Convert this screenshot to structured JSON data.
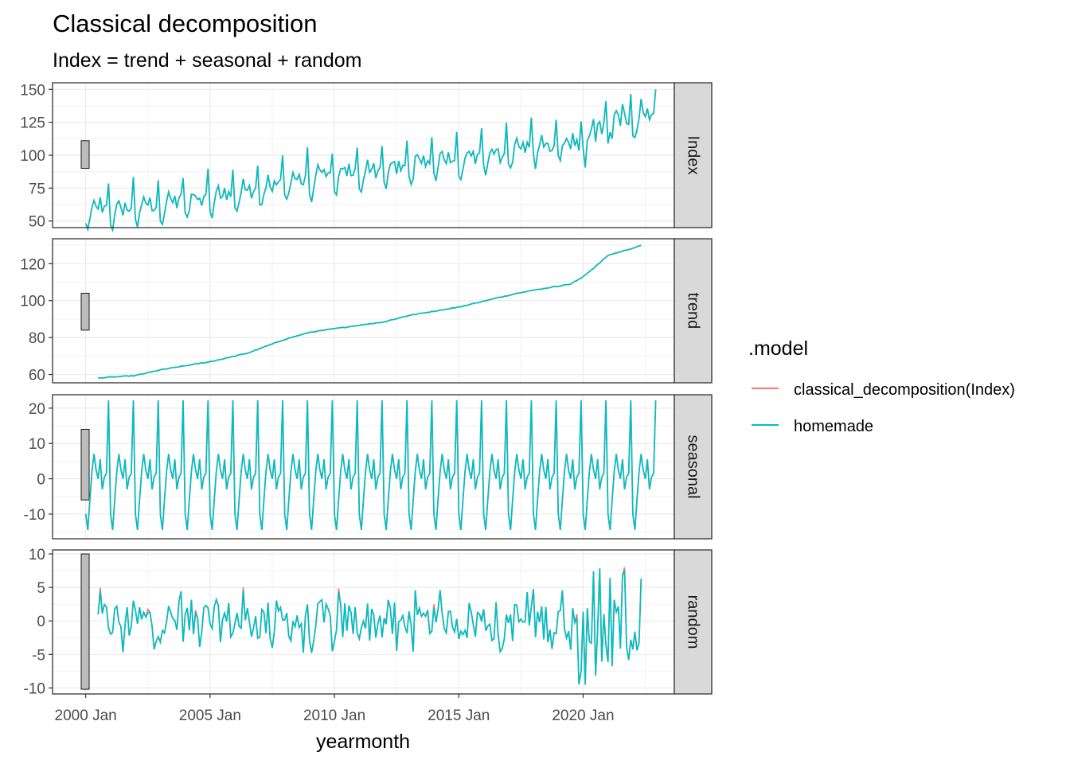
{
  "chart_data": {
    "type": "line",
    "title": "Classical decomposition",
    "subtitle": "Index = trend + seasonal + random",
    "xlabel": "yearmonth",
    "x_ticks": [
      "2000 Jan",
      "2005 Jan",
      "2010 Jan",
      "2015 Jan",
      "2020 Jan"
    ],
    "x_range": [
      "1998-09",
      "2023-09"
    ],
    "legend": {
      "title": ".model",
      "position": "right",
      "entries": [
        {
          "label": "classical_decomposition(Index)",
          "color": "#F8766D"
        },
        {
          "label": "homemade",
          "color": "#00BFC4"
        }
      ]
    },
    "panels": [
      {
        "strip": "Index",
        "ylim": [
          45,
          155
        ],
        "yticks": [
          "50",
          "75",
          "100",
          "125",
          "150"
        ],
        "scale_bar": [
          90,
          111
        ]
      },
      {
        "strip": "trend",
        "ylim": [
          55.5,
          133.5
        ],
        "yticks": [
          "60",
          "80",
          "100",
          "120"
        ],
        "scale_bar": [
          84,
          104
        ]
      },
      {
        "strip": "seasonal",
        "ylim": [
          -17,
          23.8
        ],
        "yticks": [
          "-10",
          "0",
          "10",
          "20"
        ],
        "scale_bar": [
          -6,
          14
        ]
      },
      {
        "strip": "random",
        "ylim": [
          -10.9,
          10.6
        ],
        "yticks": [
          "-10",
          "-5",
          "0",
          "5",
          "10"
        ],
        "scale_bar": [
          -10.2,
          10
        ]
      }
    ],
    "series_description": "Monthly series from 2000 Jan to 2022 Dec. Index rises from about 50 to about 143 with a seasonal spike each December; trend rises from about 58 (2000 Jul) to about 130 (2022 Jun) with a jump after 2020; seasonal pattern repeats yearly between about -14 and 22; random component stays within about +/-5 until 2020 then widens to about +/-10. Both models coincide almost everywhere.",
    "trend_knots": [
      [
        2000.5,
        58.1
      ],
      [
        2002.0,
        59.4
      ],
      [
        2003.0,
        62.5
      ],
      [
        2005.0,
        66.9
      ],
      [
        2006.5,
        71.5
      ],
      [
        2008.0,
        79.0
      ],
      [
        2009.0,
        82.8
      ],
      [
        2010.0,
        84.8
      ],
      [
        2012.0,
        88.5
      ],
      [
        2013.0,
        92.0
      ],
      [
        2015.0,
        96.5
      ],
      [
        2017.5,
        104.5
      ],
      [
        2019.5,
        109.0
      ],
      [
        2019.9,
        112.0
      ],
      [
        2020.5,
        118.5
      ],
      [
        2021.0,
        124.5
      ],
      [
        2022.4,
        130.0
      ]
    ],
    "seasonal_pattern": [
      -10,
      -14.5,
      -6,
      2,
      7,
      2.5,
      0,
      5.5,
      -3,
      0.5,
      1.5,
      22.2
    ]
  }
}
